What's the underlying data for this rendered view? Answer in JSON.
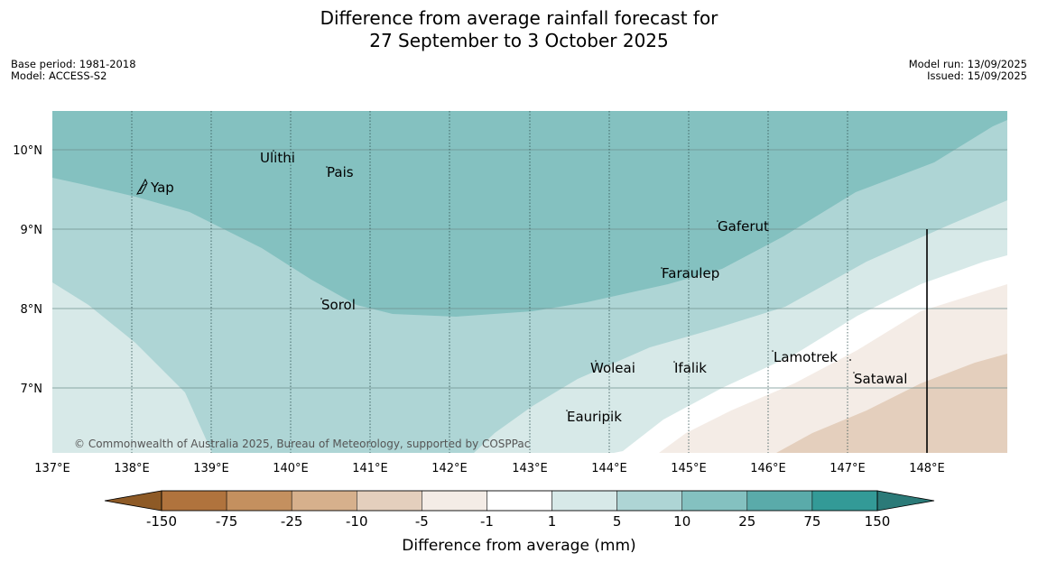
{
  "title": {
    "line1": "Difference from average rainfall forecast for",
    "line2": "27 September to 3 October 2025"
  },
  "meta": {
    "base_period": "Base period: 1981-2018",
    "model": "Model: ACCESS-S2",
    "model_run": "Model run: 13/09/2025",
    "issued": "Issued: 15/09/2025"
  },
  "map": {
    "lat_labels": [
      "10°N",
      "9°N",
      "8°N",
      "7°N"
    ],
    "lon_labels": [
      "137°E",
      "138°E",
      "139°E",
      "140°E",
      "141°E",
      "142°E",
      "143°E",
      "144°E",
      "145°E",
      "146°E",
      "147°E",
      "148°E"
    ],
    "places": [
      "Yap",
      "Ulithi",
      "Pais",
      "Gaferut",
      "Faraulep",
      "Sorol",
      "Woleai",
      "Ifalik",
      "Lamotrek",
      "Satawal",
      "Eauripik"
    ],
    "copyright": "© Commonwealth of Australia 2025, Bureau of Meteorology, supported by COSPPac"
  },
  "colorbar": {
    "ticks": [
      "-150",
      "-75",
      "-25",
      "-10",
      "-5",
      "-1",
      "1",
      "5",
      "10",
      "25",
      "75",
      "150"
    ],
    "colors": [
      "#8e5a26",
      "#b0733d",
      "#c4905f",
      "#d6b08c",
      "#e4cfbd",
      "#f4ece6",
      "#ffffff",
      "#d7e9e8",
      "#aed5d5",
      "#84c1c0",
      "#5aabaa",
      "#339a97",
      "#2b7a78"
    ],
    "title": "Difference from average (mm)"
  }
}
